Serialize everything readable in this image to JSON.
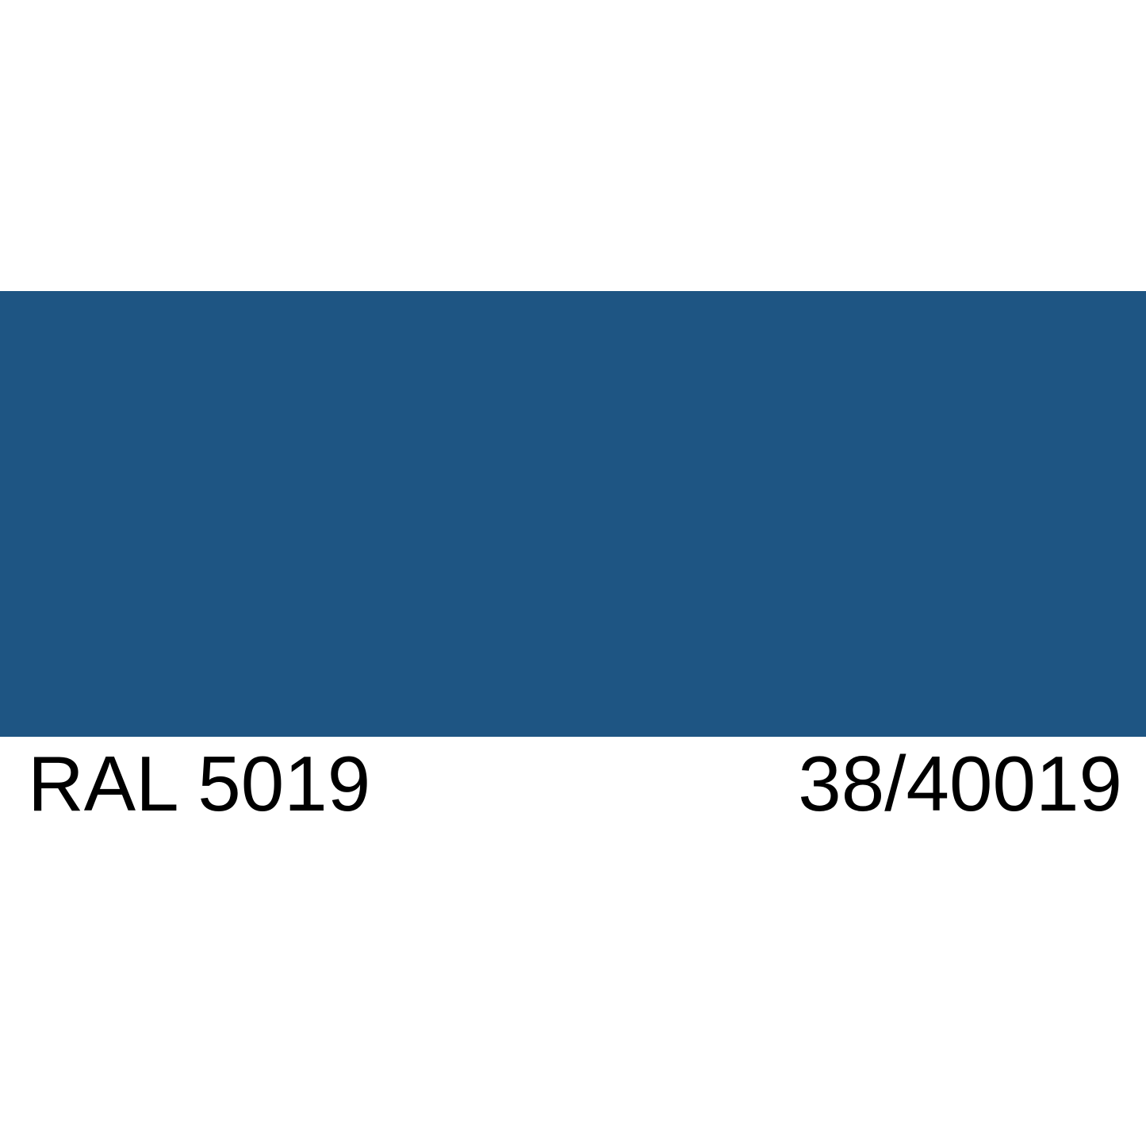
{
  "page": {
    "background": "#FFFFFF",
    "text_color": "#000000"
  },
  "swatch": {
    "ral_code": "RAL 5019",
    "alt_code": "38/40019",
    "color_hex": "#1E5583"
  }
}
